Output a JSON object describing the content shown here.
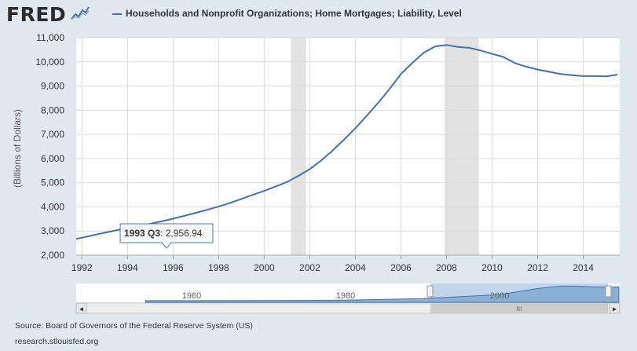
{
  "header": {
    "logo_text": "FRED",
    "legend_label": "Households and Nonprofit Organizations; Home Mortgages; Liability, Level"
  },
  "chart_data": {
    "type": "line",
    "ylabel": "(Billions of Dollars)",
    "ylim": [
      2000,
      11000
    ],
    "xlim": [
      1991.75,
      2015.6
    ],
    "x_ticks": [
      "1992",
      "1994",
      "1996",
      "1998",
      "2000",
      "2002",
      "2004",
      "2006",
      "2008",
      "2010",
      "2012",
      "2014"
    ],
    "y_ticks": [
      "2,000",
      "3,000",
      "4,000",
      "5,000",
      "6,000",
      "7,000",
      "8,000",
      "9,000",
      "10,000",
      "11,000"
    ],
    "grid": true,
    "recessions": [
      [
        2001.17,
        2001.83
      ],
      [
        2007.92,
        2009.42
      ]
    ],
    "series": [
      {
        "name": "Households and Nonprofit Organizations; Home Mortgages; Liability, Level",
        "color": "#4572a7",
        "x": [
          1991.75,
          1992.0,
          1992.5,
          1993.0,
          1993.5,
          1994.0,
          1994.5,
          1995.0,
          1995.5,
          1996.0,
          1996.5,
          1997.0,
          1997.5,
          1998.0,
          1998.5,
          1999.0,
          1999.5,
          2000.0,
          2000.5,
          2001.0,
          2001.5,
          2002.0,
          2002.5,
          2003.0,
          2003.5,
          2004.0,
          2004.5,
          2005.0,
          2005.5,
          2006.0,
          2006.5,
          2007.0,
          2007.5,
          2008.0,
          2008.5,
          2009.0,
          2009.5,
          2010.0,
          2010.5,
          2011.0,
          2011.5,
          2012.0,
          2012.5,
          2013.0,
          2013.5,
          2014.0,
          2014.5,
          2015.0,
          2015.5
        ],
        "values": [
          2680,
          2720,
          2830,
          2930,
          3030,
          3120,
          3210,
          3300,
          3400,
          3510,
          3630,
          3750,
          3880,
          4010,
          4160,
          4330,
          4500,
          4660,
          4840,
          5030,
          5280,
          5560,
          5920,
          6330,
          6780,
          7250,
          7770,
          8300,
          8880,
          9500,
          9960,
          10380,
          10640,
          10700,
          10620,
          10580,
          10470,
          10330,
          10200,
          9950,
          9800,
          9680,
          9590,
          9500,
          9450,
          9410,
          9410,
          9400,
          9470
        ]
      }
    ]
  },
  "tooltip": {
    "period": "1993 Q3",
    "value_text": ": 2,956.94"
  },
  "navigator": {
    "labels": [
      "1960",
      "1980",
      "2000"
    ],
    "scroll_grip": "III",
    "left_arrow": "◂",
    "right_arrow": "▸"
  },
  "footer": {
    "source": "Source: Board of Governors of the Federal Reserve System (US)",
    "site": "research.stlouisfed.org"
  }
}
